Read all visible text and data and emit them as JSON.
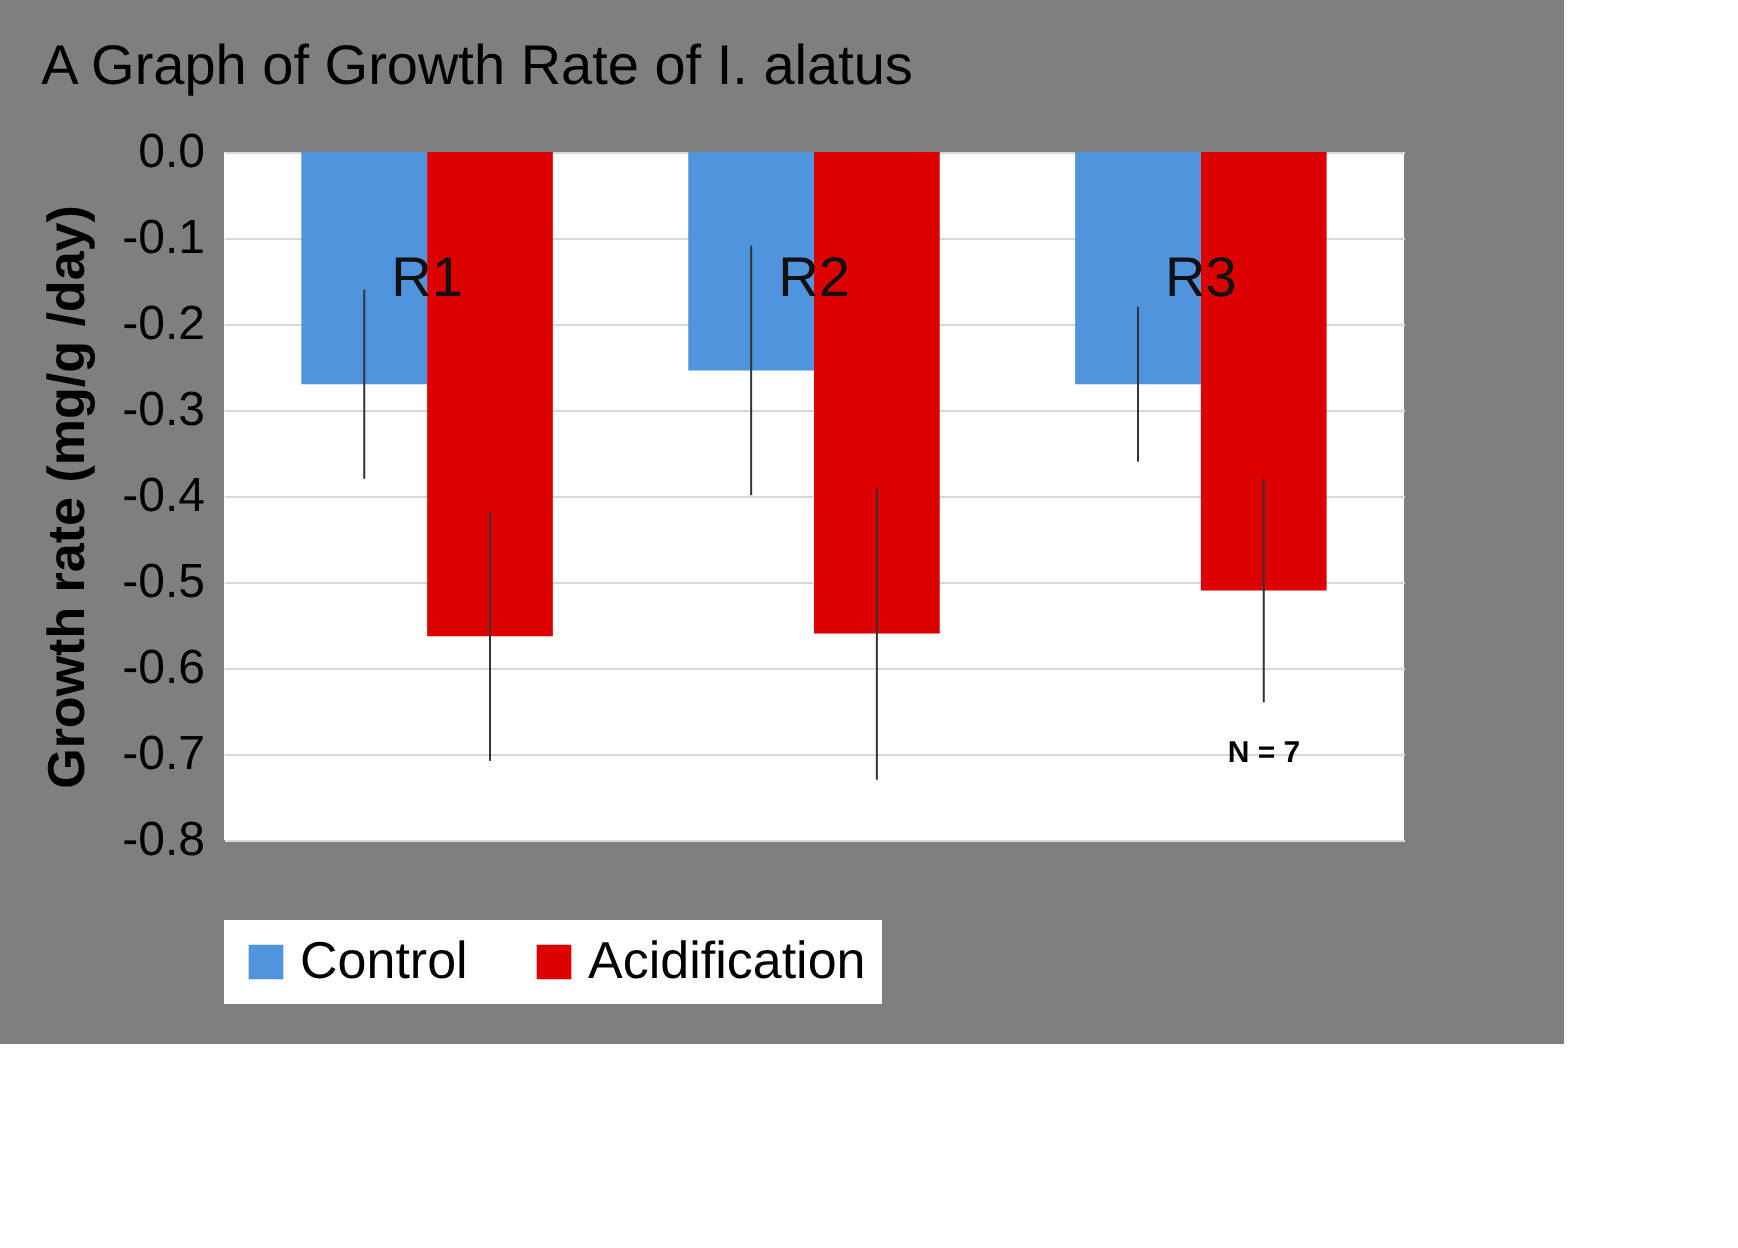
{
  "chart_data": {
    "type": "bar",
    "title": "A Graph of Growth  Rate of I. alatus",
    "ylabel": "Growth rate (mg/g /day)",
    "categories": [
      "R1",
      "R2",
      "R3"
    ],
    "series": [
      {
        "name": "Control",
        "color": "#4f94dc",
        "values": [
          -0.27,
          -0.254,
          -0.27
        ],
        "errors": [
          0.11,
          0.145,
          0.09
        ]
      },
      {
        "name": "Acidification",
        "color": "#dd0000",
        "values": [
          -0.563,
          -0.56,
          -0.51
        ],
        "errors": [
          0.145,
          0.17,
          0.13
        ]
      }
    ],
    "ylim": [
      -0.8,
      0.0
    ],
    "yticks": [
      -0.8,
      -0.7,
      -0.6,
      -0.5,
      -0.4,
      -0.3,
      -0.2,
      -0.1,
      {
        "value": 0,
        "label": "0.0"
      }
    ],
    "annotations": [
      "N = 7"
    ],
    "grid": "y",
    "legend": "bottom"
  }
}
